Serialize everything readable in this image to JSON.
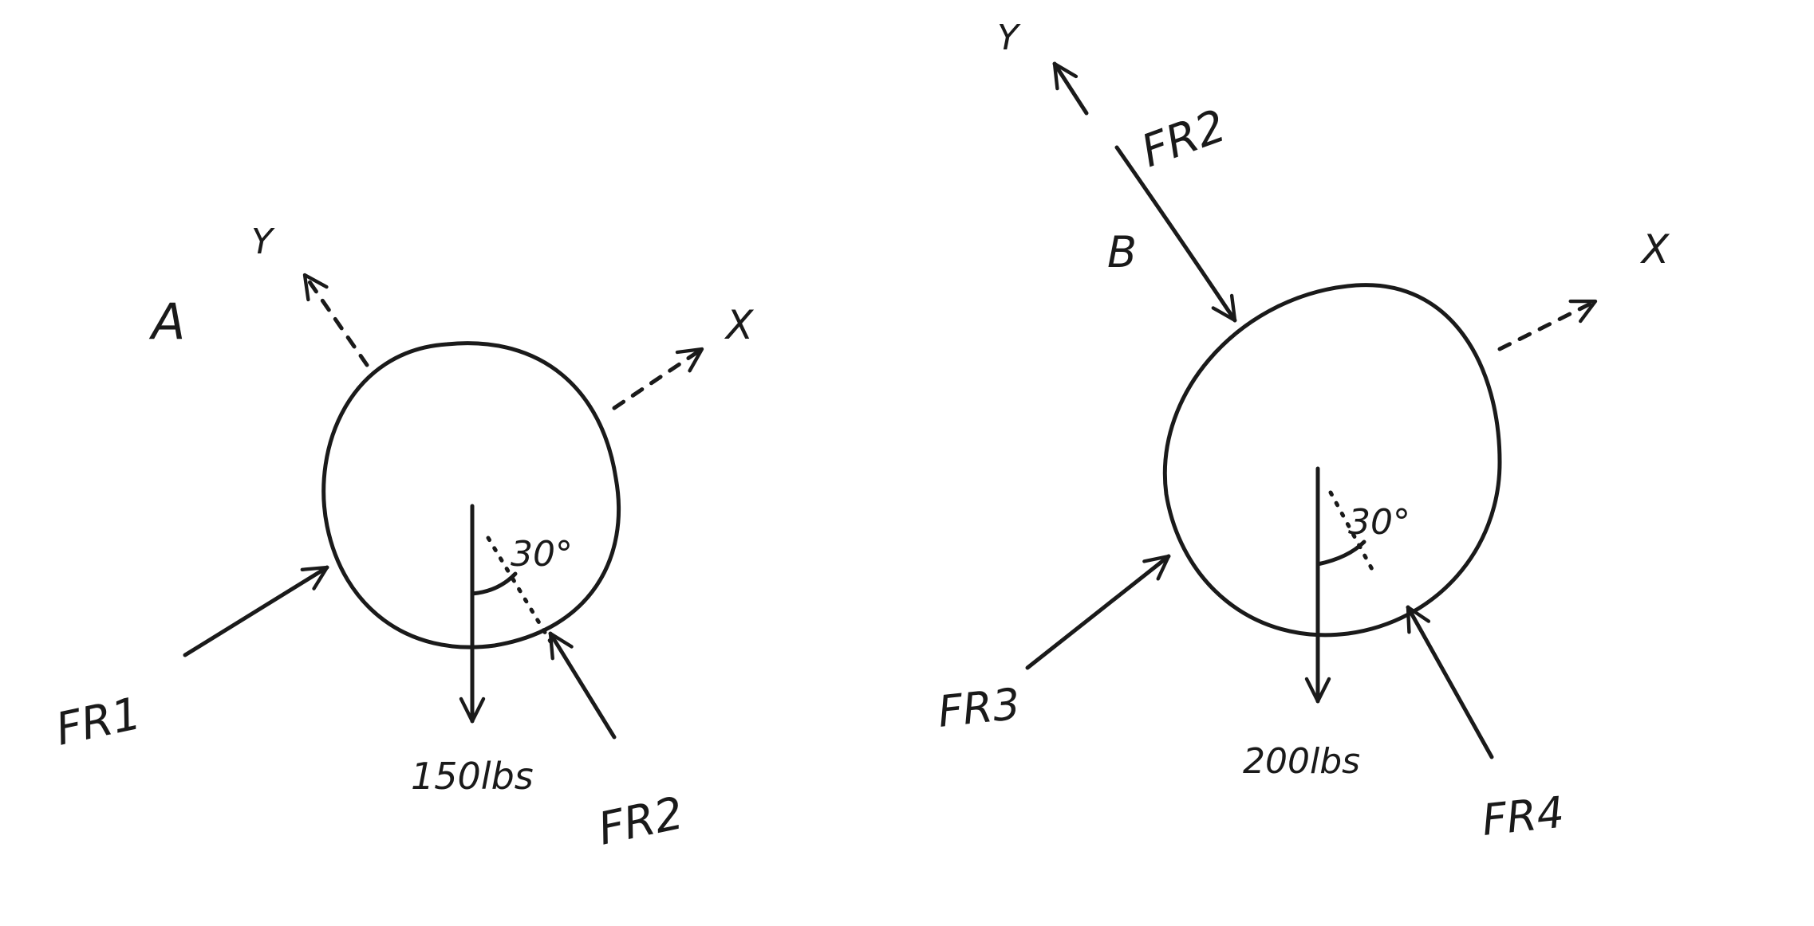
{
  "diagram_a": {
    "label": "A",
    "axis_y": "Y",
    "axis_x": "X",
    "angle": "30°",
    "weight": "150lbs",
    "force_left": "FR1",
    "force_right": "FR2"
  },
  "diagram_b": {
    "label": "B",
    "axis_y": "Y",
    "axis_x": "X",
    "angle": "30°",
    "weight": "200lbs",
    "force_top": "FR2",
    "force_left": "FR3",
    "force_right": "FR4"
  }
}
